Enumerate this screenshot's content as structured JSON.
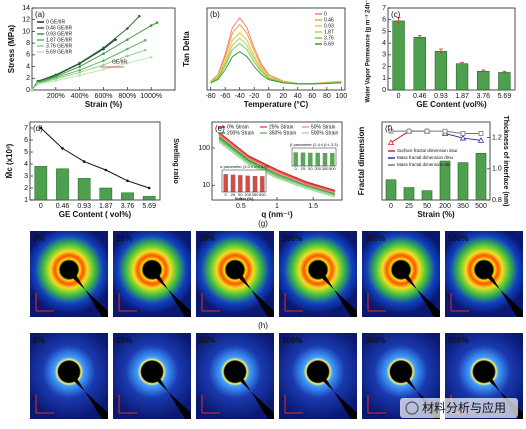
{
  "chart_data": [
    {
      "panel": "(a)",
      "type": "line",
      "xlabel": "Strain (%)",
      "ylabel": "Stress (MPa)",
      "xlim": [
        0,
        1200
      ],
      "xticks": [
        {
          "value": 200,
          "label": "200%"
        },
        {
          "value": 400,
          "label": "400%"
        },
        {
          "value": 600,
          "label": "600%"
        },
        {
          "value": 800,
          "label": "800%"
        },
        {
          "value": 1000,
          "label": "1000%"
        }
      ],
      "ylim": [
        0,
        14
      ],
      "yticks": [
        0,
        2,
        4,
        6,
        8,
        10,
        12,
        14
      ],
      "legend": "upper left",
      "annotations": [
        "GE/IIR"
      ],
      "series": [
        {
          "name": "0 GE/IIR",
          "color": "#1b2a4a",
          "marker": "circle",
          "x": [
            0,
            50,
            200,
            400,
            600,
            700
          ],
          "values": [
            0,
            1.5,
            2.5,
            4.5,
            7,
            8.6
          ]
        },
        {
          "name": "0.46 GE/IIR",
          "color": "#2e6b2e",
          "marker": "circle",
          "x": [
            0,
            50,
            200,
            400,
            600,
            800,
            900
          ],
          "values": [
            0,
            1.5,
            2.6,
            4.6,
            7.2,
            10.5,
            12.6
          ]
        },
        {
          "name": "0.93 GE/IIR",
          "color": "#3f9a3f",
          "marker": "circle",
          "x": [
            0,
            50,
            200,
            400,
            600,
            800,
            1000,
            1050
          ],
          "values": [
            0,
            1.3,
            2.3,
            4.0,
            6.2,
            8.6,
            11.0,
            11.5
          ]
        },
        {
          "name": "1.87 GE/IIR",
          "color": "#5cb85c",
          "marker": "circle",
          "x": [
            0,
            50,
            200,
            400,
            600,
            800,
            950
          ],
          "values": [
            0,
            1.2,
            2.1,
            3.4,
            5.0,
            7.0,
            8.5
          ]
        },
        {
          "name": "3.76 GE/IIR",
          "color": "#8fd18f",
          "marker": "circle",
          "x": [
            0,
            50,
            200,
            400,
            600,
            800,
            950
          ],
          "values": [
            0,
            1.1,
            1.9,
            3.0,
            4.3,
            5.8,
            6.8
          ]
        },
        {
          "name": "5.69 GE/IIR",
          "color": "#b8e6b0",
          "marker": "circle",
          "x": [
            0,
            50,
            200,
            400,
            600,
            800,
            1000
          ],
          "values": [
            0,
            1.0,
            1.6,
            2.5,
            3.5,
            4.6,
            5.6
          ]
        }
      ]
    },
    {
      "panel": "(b)",
      "type": "line",
      "xlabel": "Temperature (°C)",
      "ylabel": "Tan Delta",
      "xlim": [
        -85,
        105
      ],
      "xticks": [
        -80,
        -60,
        -40,
        -20,
        0,
        20,
        40,
        60,
        80,
        100
      ],
      "ylim": [
        0.1,
        1.6
      ],
      "legend": "upper right",
      "series": [
        {
          "name": "0",
          "color": "#f08070",
          "x": [
            -80,
            -70,
            -60,
            -50,
            -40,
            -30,
            -20,
            -10,
            0,
            20,
            40,
            60,
            80,
            100
          ],
          "values": [
            0.26,
            0.38,
            0.75,
            1.24,
            1.42,
            1.24,
            0.87,
            0.57,
            0.38,
            0.26,
            0.22,
            0.22,
            0.24,
            0.26
          ]
        },
        {
          "name": "0.46",
          "color": "#f5a040",
          "x": [
            -80,
            -70,
            -60,
            -50,
            -40,
            -30,
            -20,
            -10,
            0,
            20,
            40,
            60,
            80,
            100
          ],
          "values": [
            0.26,
            0.37,
            0.7,
            1.14,
            1.3,
            1.14,
            0.81,
            0.53,
            0.37,
            0.26,
            0.22,
            0.22,
            0.23,
            0.26
          ]
        },
        {
          "name": "0.93",
          "color": "#e8c840",
          "x": [
            -80,
            -70,
            -60,
            -50,
            -40,
            -30,
            -20,
            -10,
            0,
            20,
            40,
            60,
            80,
            100
          ],
          "values": [
            0.25,
            0.34,
            0.63,
            1.01,
            1.15,
            1.01,
            0.72,
            0.49,
            0.34,
            0.25,
            0.22,
            0.22,
            0.23,
            0.25
          ]
        },
        {
          "name": "1.87",
          "color": "#b8d050",
          "x": [
            -80,
            -70,
            -60,
            -50,
            -40,
            -30,
            -20,
            -10,
            0,
            20,
            40,
            60,
            80,
            100
          ],
          "values": [
            0.24,
            0.33,
            0.58,
            0.92,
            1.05,
            0.92,
            0.67,
            0.46,
            0.33,
            0.24,
            0.22,
            0.22,
            0.23,
            0.24
          ]
        },
        {
          "name": "3.76",
          "color": "#7cc860",
          "x": [
            -80,
            -70,
            -60,
            -50,
            -40,
            -30,
            -20,
            -10,
            0,
            20,
            40,
            60,
            80,
            100
          ],
          "values": [
            0.24,
            0.31,
            0.54,
            0.84,
            0.95,
            0.84,
            0.61,
            0.43,
            0.31,
            0.24,
            0.22,
            0.22,
            0.22,
            0.24
          ]
        },
        {
          "name": "5.69",
          "color": "#3a9a3a",
          "x": [
            -80,
            -70,
            -60,
            -50,
            -40,
            -30,
            -20,
            -10,
            0,
            20,
            40,
            60,
            80,
            100
          ],
          "values": [
            0.23,
            0.29,
            0.47,
            0.71,
            0.8,
            0.71,
            0.53,
            0.38,
            0.29,
            0.23,
            0.21,
            0.21,
            0.22,
            0.23
          ]
        }
      ]
    },
    {
      "panel": "(c)",
      "type": "bar",
      "xlabel": "GE Content (vol%)",
      "ylabel": "Water Vapor Permeance (g m⁻² 24h⁻¹)",
      "categories": [
        "0",
        "0.46",
        "0.93",
        "1.87",
        "3.76",
        "5.69"
      ],
      "values": [
        5.9,
        4.5,
        3.3,
        2.25,
        1.6,
        1.5
      ],
      "errors": [
        0.3,
        0.15,
        0.2,
        0.1,
        0.1,
        0.1
      ],
      "color": "#2f8f2f",
      "error_color": "#d62728",
      "ylim": [
        0,
        7
      ],
      "yticks": [
        0,
        1,
        2,
        3,
        4,
        5,
        6,
        7
      ]
    },
    {
      "panel": "(d)",
      "type": "bar_line",
      "xlabel": "GE Content ( vol%)",
      "ylabel": "M̄c (x10³)",
      "y2label": "Swelling ratio",
      "categories": [
        "0",
        "0.46",
        "0.93",
        "1.87",
        "3.76",
        "5.69"
      ],
      "ylim": [
        1,
        7.5
      ],
      "yticks": [
        1,
        2,
        3,
        4,
        5,
        6,
        7
      ],
      "y2lim": [
        0,
        6.5
      ],
      "series": [
        {
          "type": "bar",
          "axis": "y2",
          "color": "#2f8f2f",
          "values": [
            2.8,
            2.6,
            1.8,
            1.0,
            0.6,
            0.3
          ]
        },
        {
          "type": "line",
          "color": "#111111",
          "marker": "circle",
          "values": [
            7.0,
            5.3,
            4.2,
            3.5,
            2.6,
            2.0
          ]
        }
      ]
    },
    {
      "panel": "(e)",
      "type": "line",
      "xlabel": "q (nm⁻¹)",
      "ylog": true,
      "xlim": [
        0.1,
        1.9
      ],
      "xticks": [
        0.5,
        1,
        1.5
      ],
      "ylim": [
        4,
        500
      ],
      "yticks": [
        10,
        100
      ],
      "legend": "upper center",
      "series": [
        {
          "name": "0% Strain",
          "color": "#d62728",
          "x": [
            0.2,
            0.6,
            1.0,
            1.4,
            1.8
          ],
          "values": [
            250,
            60,
            25,
            12,
            7
          ]
        },
        {
          "name": "25% Strain",
          "color": "#e8605a",
          "x": [
            0.2,
            0.6,
            1.0,
            1.4,
            1.8
          ],
          "values": [
            230,
            55,
            23,
            11,
            6.5
          ]
        },
        {
          "name": "50% Strain",
          "color": "#f09a90",
          "x": [
            0.2,
            0.6,
            1.0,
            1.4,
            1.8
          ],
          "values": [
            210,
            50,
            21,
            10,
            6
          ]
        },
        {
          "name": "200% Strain",
          "color": "#3a9a3a",
          "x": [
            0.2,
            0.6,
            1.0,
            1.4,
            1.8
          ],
          "values": [
            190,
            46,
            19,
            9.5,
            5.6
          ]
        },
        {
          "name": "350% Strain",
          "color": "#6cc070",
          "x": [
            0.2,
            0.6,
            1.0,
            1.4,
            1.8
          ],
          "values": [
            170,
            42,
            18,
            9,
            5.3
          ]
        },
        {
          "name": "500% Strain",
          "color": "#a8dca0",
          "x": [
            0.2,
            0.6,
            1.0,
            1.4,
            1.8
          ],
          "values": [
            150,
            38,
            16,
            8.5,
            5
          ]
        }
      ]
    },
    {
      "type": "bar",
      "label": "α parameter (3.0 ≤ α ≤ 4.0)",
      "xlabel": "Strain (%)",
      "categories": [
        "0",
        "25",
        "50",
        "200",
        "350",
        "500"
      ],
      "values": [
        3.6,
        3.5,
        3.4,
        3.3,
        3.25,
        3.2
      ],
      "color": "#d62728",
      "ylim": [
        0,
        4.5
      ]
    },
    {
      "type": "bar",
      "label": "β parameter (2.4 ≤ β ≤ 3.3)",
      "categories": [
        "0",
        "25",
        "50",
        "200",
        "350",
        "500"
      ],
      "values": [
        3.0,
        2.95,
        2.9,
        2.9,
        2.85,
        2.85
      ],
      "color": "#3a9a3a",
      "ylim": [
        0,
        4
      ]
    },
    {
      "panel": "(f)",
      "type": "bar_line",
      "xlabel": "Strain (%)",
      "ylabel": "Fractal dimension",
      "y2label": "Thickness of interface (nm)",
      "categories": [
        "0",
        "25",
        "50",
        "200",
        "350",
        "500"
      ],
      "ylim": [
        1.5,
        3.2
      ],
      "y2lim": [
        0.8,
        1.3
      ],
      "y2ticks": [
        0.8,
        {
          "value": 1,
          "label": "1.0"
        },
        1.2
      ],
      "legend": "center",
      "series": [
        {
          "type": "bar",
          "axis": "y2",
          "color": "#2f8f2f",
          "values": [
            0.93,
            0.88,
            0.86,
            1.05,
            1.04,
            1.1
          ]
        },
        {
          "type": "line",
          "name": "Surface fractal dimension dsur",
          "color": "#d62728",
          "marker": "triangle",
          "values": [
            2.75,
            3.0,
            3.0,
            null,
            null,
            null
          ]
        },
        {
          "type": "line",
          "name": "Mass fractal dimension dmu",
          "color": "#2838a0",
          "marker": "triangle",
          "values": [
            null,
            null,
            null,
            2.95,
            2.85,
            2.8
          ]
        },
        {
          "type": "line",
          "name": "Mass fractal dimension dm",
          "color": "#777777",
          "marker": "square",
          "values": [
            3.0,
            3.0,
            3.0,
            3.0,
            2.95,
            2.95
          ]
        }
      ]
    }
  ],
  "images": [
    {
      "panel": "(g)",
      "labels": [
        "0%",
        "25%",
        "50%",
        "200%",
        "350%",
        "500%"
      ]
    },
    {
      "panel": "(h)",
      "labels": [
        "0%",
        "25%",
        "50%",
        "200%",
        "350%",
        "500%"
      ]
    }
  ],
  "image_axes": [
    "X",
    "Z"
  ],
  "watermark": "材料分析与应用"
}
